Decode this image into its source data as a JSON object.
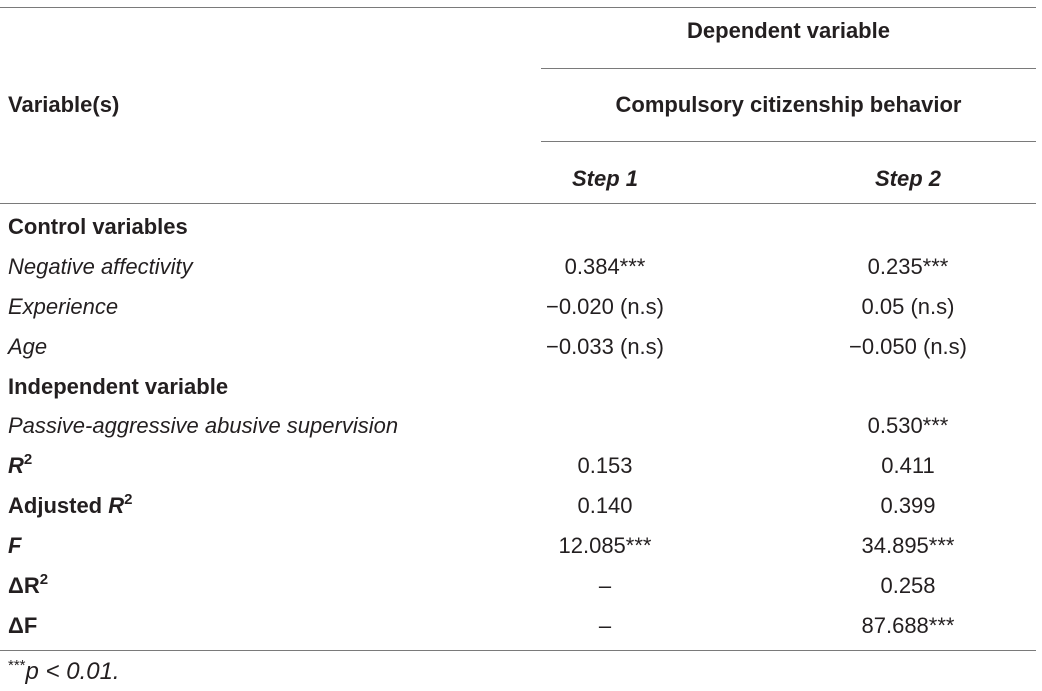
{
  "header": {
    "variables_label": "Variable(s)",
    "dependent_label": "Dependent variable",
    "dependent_name": "Compulsory citizenship behavior",
    "step1": "Step 1",
    "step2": "Step 2"
  },
  "sections": {
    "control": "Control variables",
    "independent": "Independent variable"
  },
  "rows": {
    "negative_affectivity": {
      "label": "Negative affectivity",
      "step1": "0.384***",
      "step2": "0.235***"
    },
    "experience": {
      "label": "Experience",
      "step1": "−0.020 (n.s)",
      "step2": "0.05 (n.s)"
    },
    "age": {
      "label": "Age",
      "step1": "−0.033 (n.s)",
      "step2": "−0.050 (n.s)"
    },
    "passive_aggressive": {
      "label": "Passive-aggressive abusive supervision",
      "step1": "",
      "step2": "0.530***"
    },
    "r2": {
      "label_main": "R",
      "label_sup": "2",
      "step1": "0.153",
      "step2": "0.411"
    },
    "adj_r2": {
      "label_main": "Adjusted ",
      "label_r": "R",
      "label_sup": "2",
      "step1": "0.140",
      "step2": "0.399"
    },
    "f": {
      "label": "F",
      "step1": "12.085***",
      "step2": "34.895***"
    },
    "delta_r2": {
      "label_main": "ΔR",
      "label_sup": "2",
      "step1": "–",
      "step2": "0.258"
    },
    "delta_f": {
      "label": "ΔF",
      "step1": "–",
      "step2": "87.688***"
    }
  },
  "footnote": {
    "stars": "***",
    "text": "p < 0.01."
  }
}
